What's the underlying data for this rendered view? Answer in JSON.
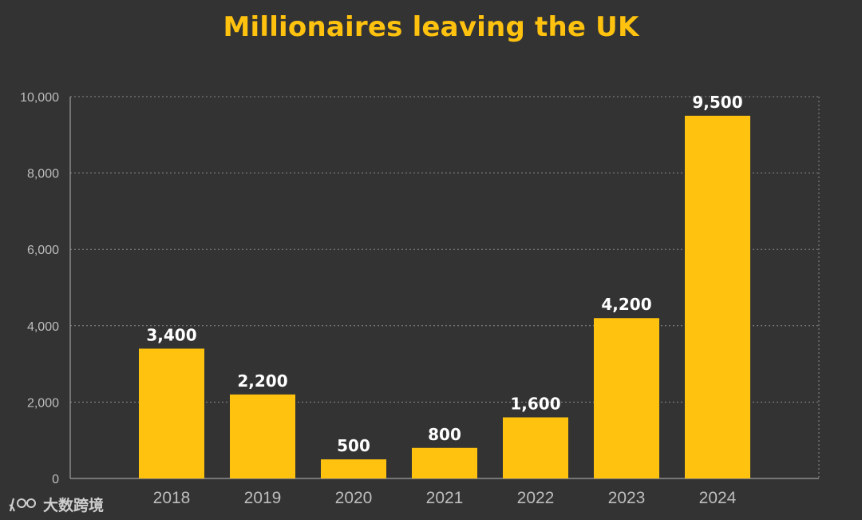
{
  "chart_data": {
    "type": "bar",
    "title": "Millionaires leaving the UK",
    "categories": [
      "2018",
      "2019",
      "2020",
      "2021",
      "2022",
      "2023",
      "2024"
    ],
    "values": [
      3400,
      2200,
      500,
      800,
      1600,
      4200,
      9500
    ],
    "value_labels": [
      "3,400",
      "2,200",
      "500",
      "800",
      "1,600",
      "4,200",
      "9,500"
    ],
    "ylim": [
      0,
      10000
    ],
    "yticks": [
      0,
      2000,
      4000,
      6000,
      8000,
      10000
    ],
    "ytick_labels": [
      "0",
      "2,000",
      "4,000",
      "6,000",
      "8,000",
      "10,000"
    ],
    "grid": true,
    "bar_color": "#FFC20E"
  },
  "watermark": {
    "logo": "100",
    "text": "大数跨境"
  },
  "colors": {
    "background": "#333333",
    "title": "#FFC20E",
    "grid": "#8A8A8A",
    "axis_text": "#BDBDBD",
    "value_text": "#FFFFFF"
  }
}
